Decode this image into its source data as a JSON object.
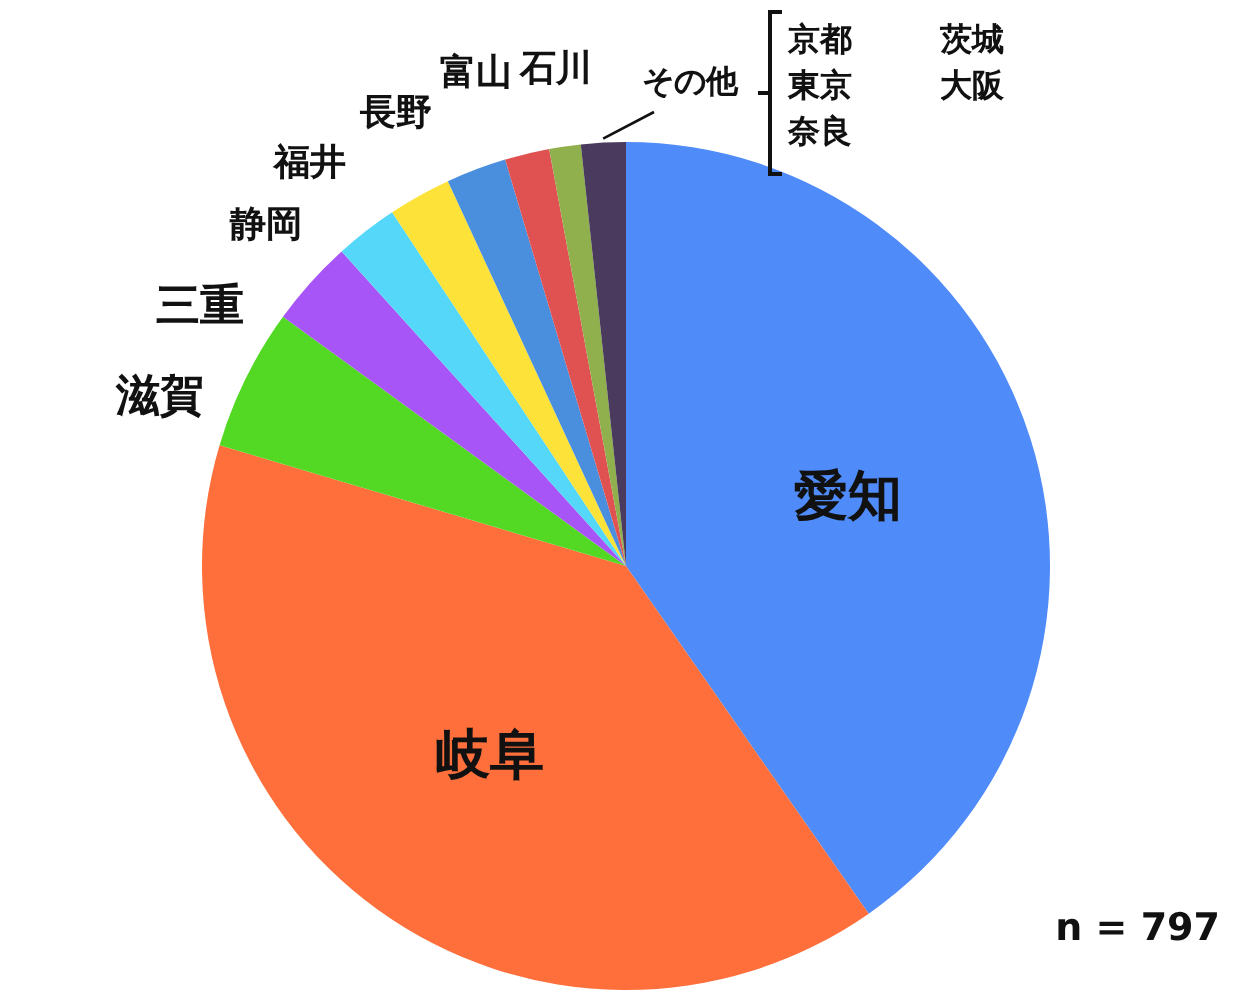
{
  "chart_data": {
    "type": "pie",
    "categories": [
      "愛知",
      "岐阜",
      "滋賀",
      "三重",
      "静岡",
      "福井",
      "長野",
      "富山",
      "石川",
      "その他"
    ],
    "values": [
      40.3,
      39.3,
      5.4,
      3.3,
      2.4,
      2.4,
      2.3,
      1.7,
      1.2,
      1.7
    ],
    "colors": [
      "#4f8bf9",
      "#ff6f3b",
      "#53d923",
      "#a855f7",
      "#55d7fa",
      "#fde23a",
      "#4a8fdd",
      "#e05252",
      "#8fb04d",
      "#4a3a5e"
    ],
    "annotations": [
      "京都",
      "茨城",
      "東京",
      "大阪",
      "奈良",
      "n = 797"
    ]
  }
}
